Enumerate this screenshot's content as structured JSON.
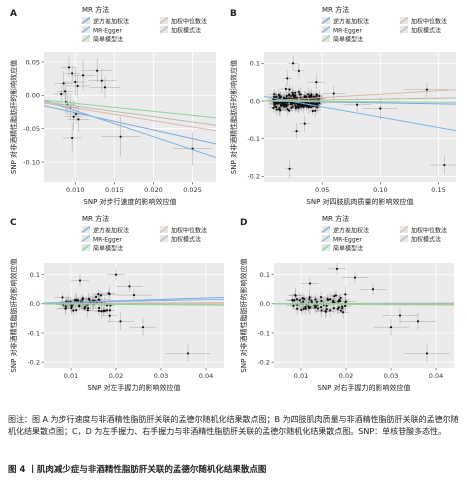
{
  "legend_title": "MR 方法",
  "methods": [
    {
      "label": "逆方差加权法",
      "color": "#7aa7d8"
    },
    {
      "label": "加权中位数法",
      "color": "#d9b8a6"
    },
    {
      "label": "MR-Egger",
      "color": "#7fb3e6"
    },
    {
      "label": "加权模式法",
      "color": "#b9b9a8"
    },
    {
      "label": "简单模型法",
      "color": "#8fd19a"
    }
  ],
  "chart_data": [
    {
      "panel": "A",
      "type": "scatter",
      "xlabel": "SNP 对步行速度的影响效应值",
      "ylabel": "SNP 对非酒精性脂肪肝的影响效应值",
      "xlim": [
        0.006,
        0.028
      ],
      "ylim": [
        -0.13,
        0.065
      ],
      "xticks": [
        0.01,
        0.015,
        0.02,
        0.025
      ],
      "xtick_labels": [
        "0.010",
        "0.015",
        "0.020",
        "0.025"
      ],
      "yticks": [
        0.05,
        0.0,
        -0.05,
        -0.1
      ],
      "ytick_labels": [
        "0.05",
        "0.00",
        "-0.05",
        "-0.10"
      ],
      "grid": true,
      "legend": "top",
      "points": [
        {
          "x": 0.0085,
          "y": 0.018,
          "xe": 0.0012,
          "ye": 0.018
        },
        {
          "x": 0.0092,
          "y": 0.042,
          "xe": 0.001,
          "ye": 0.015
        },
        {
          "x": 0.0096,
          "y": 0.033,
          "xe": 0.001,
          "ye": 0.012
        },
        {
          "x": 0.01,
          "y": 0.02,
          "xe": 0.0014,
          "ye": 0.02
        },
        {
          "x": 0.0103,
          "y": 0.014,
          "xe": 0.0015,
          "ye": 0.016
        },
        {
          "x": 0.0088,
          "y": -0.01,
          "xe": 0.0012,
          "ye": 0.018
        },
        {
          "x": 0.009,
          "y": -0.014,
          "xe": 0.001,
          "ye": 0.014
        },
        {
          "x": 0.0094,
          "y": -0.018,
          "xe": 0.001,
          "ye": 0.02
        },
        {
          "x": 0.0098,
          "y": -0.032,
          "xe": 0.0012,
          "ye": 0.02
        },
        {
          "x": 0.0101,
          "y": -0.028,
          "xe": 0.0012,
          "ye": 0.015
        },
        {
          "x": 0.0104,
          "y": -0.036,
          "xe": 0.0014,
          "ye": 0.018
        },
        {
          "x": 0.0096,
          "y": -0.064,
          "xe": 0.0012,
          "ye": 0.022
        },
        {
          "x": 0.011,
          "y": 0.03,
          "xe": 0.0015,
          "ye": 0.022
        },
        {
          "x": 0.0128,
          "y": 0.037,
          "xe": 0.002,
          "ye": 0.018
        },
        {
          "x": 0.0134,
          "y": 0.022,
          "xe": 0.0018,
          "ye": 0.018
        },
        {
          "x": 0.0138,
          "y": 0.012,
          "xe": 0.002,
          "ye": 0.016
        },
        {
          "x": 0.0158,
          "y": -0.062,
          "xe": 0.0025,
          "ye": 0.03
        },
        {
          "x": 0.025,
          "y": -0.08,
          "xe": 0.0025,
          "ye": 0.025
        },
        {
          "x": 0.0082,
          "y": 0.002,
          "xe": 0.001,
          "ye": 0.012
        },
        {
          "x": 0.0087,
          "y": 0.006,
          "xe": 0.001,
          "ye": 0.013
        }
      ],
      "lines": [
        {
          "method": 0,
          "slope": -2.6
        },
        {
          "method": 1,
          "slope": -1.9
        },
        {
          "method": 2,
          "intercept": 0.016,
          "slope": -3.9
        },
        {
          "method": 3,
          "slope": -1.6
        },
        {
          "method": 4,
          "slope": -1.2
        }
      ]
    },
    {
      "panel": "B",
      "type": "scatter",
      "xlabel": "SNP 对四肢肌肉质量的影响效应值",
      "ylabel": "SNP 对非酒精性脂肪肝的影响效应值",
      "xlim": [
        0,
        0.165
      ],
      "ylim": [
        -0.215,
        0.13
      ],
      "xticks": [
        0.05,
        0.1,
        0.15
      ],
      "xtick_labels": [
        "0.05",
        "0.10",
        "0.15"
      ],
      "yticks": [
        0.1,
        0.0,
        -0.1,
        -0.2
      ],
      "ytick_labels": [
        "0.1",
        "0.0",
        "-0.1",
        "-0.2"
      ],
      "grid": true,
      "legend": "top",
      "cluster": {
        "n": 260,
        "x_min": 0.008,
        "x_max": 0.048,
        "y_sd": 0.018,
        "xe": 0.004,
        "ye": 0.012
      },
      "points": [
        {
          "x": 0.025,
          "y": 0.1,
          "xe": 0.004,
          "ye": 0.02
        },
        {
          "x": 0.03,
          "y": 0.08,
          "xe": 0.004,
          "ye": 0.02
        },
        {
          "x": 0.02,
          "y": 0.06,
          "xe": 0.004,
          "ye": 0.02
        },
        {
          "x": 0.035,
          "y": -0.06,
          "xe": 0.005,
          "ye": 0.02
        },
        {
          "x": 0.028,
          "y": -0.08,
          "xe": 0.004,
          "ye": 0.02
        },
        {
          "x": 0.022,
          "y": -0.18,
          "xe": 0.004,
          "ye": 0.025
        },
        {
          "x": 0.045,
          "y": 0.05,
          "xe": 0.008,
          "ye": 0.02
        },
        {
          "x": 0.06,
          "y": 0.02,
          "xe": 0.01,
          "ye": 0.02
        },
        {
          "x": 0.08,
          "y": -0.01,
          "xe": 0.012,
          "ye": 0.02
        },
        {
          "x": 0.1,
          "y": -0.02,
          "xe": 0.015,
          "ye": 0.03
        },
        {
          "x": 0.14,
          "y": 0.03,
          "xe": 0.02,
          "ye": 0.02
        },
        {
          "x": 0.155,
          "y": -0.17,
          "xe": 0.012,
          "ye": 0.025
        }
      ],
      "lines": [
        {
          "method": 0,
          "slope": -0.05
        },
        {
          "method": 1,
          "slope": 0.18
        },
        {
          "method": 2,
          "intercept": 0.012,
          "slope": -0.55
        },
        {
          "method": 3,
          "slope": 0.05
        },
        {
          "method": 4,
          "slope": -0.02
        }
      ]
    },
    {
      "panel": "C",
      "type": "scatter",
      "xlabel": "SNP 对左手握力的影响效应值",
      "ylabel": "SNP 对非酒精性脂肪肝的影响效应值",
      "xlim": [
        0.004,
        0.044
      ],
      "ylim": [
        -0.22,
        0.14
      ],
      "xticks": [
        0.01,
        0.02,
        0.03,
        0.04
      ],
      "xtick_labels": [
        "0.01",
        "0.02",
        "0.03",
        "0.04"
      ],
      "yticks": [
        0.1,
        0.0,
        -0.1,
        -0.2
      ],
      "ytick_labels": [
        "0.1",
        "0.0",
        "-0.1",
        "-0.2"
      ],
      "grid": true,
      "legend": "top",
      "cluster": {
        "n": 70,
        "x_min": 0.008,
        "x_max": 0.019,
        "y_sd": 0.025,
        "xe": 0.0015,
        "ye": 0.018
      },
      "points": [
        {
          "x": 0.02,
          "y": 0.1,
          "xe": 0.002,
          "ye": 0.02
        },
        {
          "x": 0.023,
          "y": 0.06,
          "xe": 0.003,
          "ye": 0.02
        },
        {
          "x": 0.026,
          "y": -0.08,
          "xe": 0.003,
          "ye": 0.03
        },
        {
          "x": 0.021,
          "y": -0.06,
          "xe": 0.003,
          "ye": 0.03
        },
        {
          "x": 0.024,
          "y": 0.03,
          "xe": 0.004,
          "ye": 0.02
        },
        {
          "x": 0.036,
          "y": -0.17,
          "xe": 0.005,
          "ye": 0.03
        },
        {
          "x": 0.012,
          "y": 0.08,
          "xe": 0.002,
          "ye": 0.02
        }
      ],
      "lines": [
        {
          "method": 0,
          "slope": 0.5
        },
        {
          "method": 1,
          "slope": 0.1
        },
        {
          "method": 2,
          "intercept": 0.002,
          "slope": 0.3
        },
        {
          "method": 3,
          "slope": 0.0
        },
        {
          "method": 4,
          "slope": -0.1
        }
      ]
    },
    {
      "panel": "D",
      "type": "scatter",
      "xlabel": "SNP 对右手握力的影响效应值",
      "ylabel": "SNP 对非酒精性脂肪肝的影响效应值",
      "xlim": [
        0.004,
        0.044
      ],
      "ylim": [
        -0.22,
        0.14
      ],
      "xticks": [
        0.01,
        0.02,
        0.03,
        0.04
      ],
      "xtick_labels": [
        "0.01",
        "0.02",
        "0.03",
        "0.04"
      ],
      "yticks": [
        0.1,
        0.0,
        -0.1,
        -0.2
      ],
      "ytick_labels": [
        "0.1",
        "0.0",
        "-0.1",
        "-0.2"
      ],
      "grid": true,
      "legend": "top",
      "cluster": {
        "n": 70,
        "x_min": 0.008,
        "x_max": 0.02,
        "y_sd": 0.025,
        "xe": 0.0015,
        "ye": 0.018
      },
      "points": [
        {
          "x": 0.018,
          "y": 0.12,
          "xe": 0.002,
          "ye": 0.02
        },
        {
          "x": 0.022,
          "y": 0.09,
          "xe": 0.003,
          "ye": 0.02
        },
        {
          "x": 0.026,
          "y": 0.05,
          "xe": 0.003,
          "ye": 0.02
        },
        {
          "x": 0.032,
          "y": -0.04,
          "xe": 0.004,
          "ye": 0.03
        },
        {
          "x": 0.03,
          "y": -0.08,
          "xe": 0.004,
          "ye": 0.03
        },
        {
          "x": 0.036,
          "y": -0.06,
          "xe": 0.004,
          "ye": 0.03
        },
        {
          "x": 0.038,
          "y": -0.17,
          "xe": 0.005,
          "ye": 0.03
        },
        {
          "x": 0.012,
          "y": 0.07,
          "xe": 0.002,
          "ye": 0.02
        }
      ],
      "lines": [
        {
          "method": 0,
          "slope": 0.0
        },
        {
          "method": 1,
          "slope": -0.1
        },
        {
          "method": 2,
          "intercept": 0.0,
          "slope": 0.05
        },
        {
          "method": 3,
          "slope": 0.05
        },
        {
          "method": 4,
          "slope": -0.05
        }
      ]
    }
  ],
  "caption": {
    "note": "图注：图 A 为步行速度与非酒精性脂肪肝关联的孟德尔随机化结果散点图；B 为四肢肌肉质量与非酒精性脂肪肝关联的孟德尔随机化结果散点图；C，D 为左手握力、右手握力与非酒精性脂肪肝关联的孟德尔随机化结果散点图。SNP：单核苷酸多态性。",
    "title": "图 4 丨肌肉减少症与非酒精性脂肪肝关联的孟德尔随机化结果散点图"
  }
}
